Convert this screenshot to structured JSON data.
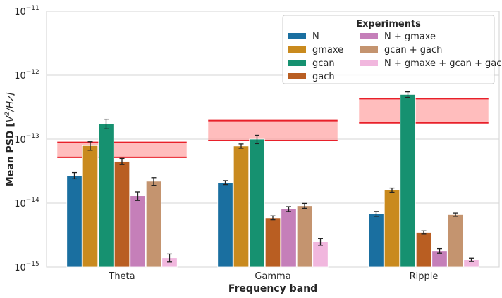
{
  "chart_data": {
    "type": "bar",
    "xlabel": "Frequency band",
    "ylabel_main": "Mean PSD [",
    "ylabel_unit_base": "V",
    "ylabel_unit_exp": "2",
    "ylabel_unit_rest": "/Hz]",
    "yscale": "log",
    "ylim": [
      1e-15,
      1e-11
    ],
    "yticks": [
      {
        "value": 1e-15,
        "base": "10",
        "exp": "−15"
      },
      {
        "value": 1e-14,
        "base": "10",
        "exp": "−14"
      },
      {
        "value": 1e-13,
        "base": "10",
        "exp": "−13"
      },
      {
        "value": 1e-12,
        "base": "10",
        "exp": "−12"
      },
      {
        "value": 1e-11,
        "base": "10",
        "exp": "−11"
      }
    ],
    "grid": true,
    "legend": {
      "title": "Experiments",
      "placement": "top-right",
      "columns": [
        [
          "N",
          "gmaxe",
          "gcan",
          "gach"
        ],
        [
          "N + gmaxe",
          "gcan + gach",
          "N + gmaxe + gcan + gach"
        ]
      ]
    },
    "categories": [
      "Theta",
      "Gamma",
      "Ripple"
    ],
    "series": [
      {
        "name": "N",
        "color": "#1a6fa0",
        "values": [
          2.7e-14,
          2.1e-14,
          6.8e-15
        ],
        "err": [
          3e-15,
          1.5e-15,
          6e-16
        ]
      },
      {
        "name": "gmaxe",
        "color": "#c98a1e",
        "values": [
          7.9e-14,
          7.8e-14,
          1.6e-14
        ],
        "err": [
          1.2e-14,
          6e-15,
          1.2e-15
        ]
      },
      {
        "name": "gcan",
        "color": "#169170",
        "values": [
          1.75e-13,
          1e-13,
          5e-13
        ],
        "err": [
          3e-14,
          1.5e-14,
          5e-14
        ]
      },
      {
        "name": "gach",
        "color": "#b95e22",
        "values": [
          4.5e-14,
          5.9e-15,
          3.5e-15
        ],
        "err": [
          5e-15,
          4e-16,
          2e-16
        ]
      },
      {
        "name": "N + gmaxe",
        "color": "#c57fb9",
        "values": [
          1.3e-14,
          8.1e-15,
          1.8e-15
        ],
        "err": [
          2e-15,
          7e-16,
          1.5e-16
        ]
      },
      {
        "name": "gcan + gach",
        "color": "#c4946f",
        "values": [
          2.2e-14,
          9.1e-15,
          6.6e-15
        ],
        "err": [
          3e-15,
          8e-16,
          4e-16
        ]
      },
      {
        "name": "N + gmaxe + gcan + gach",
        "color": "#f1b7de",
        "values": [
          1.4e-15,
          2.5e-15,
          1.3e-15
        ],
        "err": [
          2e-16,
          3e-16,
          8e-17
        ]
      }
    ],
    "target_bands": [
      {
        "category": "Theta",
        "low": 5.2e-14,
        "high": 8.9e-14
      },
      {
        "category": "Gamma",
        "low": 9.5e-14,
        "high": 1.95e-13
      },
      {
        "category": "Ripple",
        "low": 1.8e-13,
        "high": 4.3e-13
      }
    ]
  }
}
